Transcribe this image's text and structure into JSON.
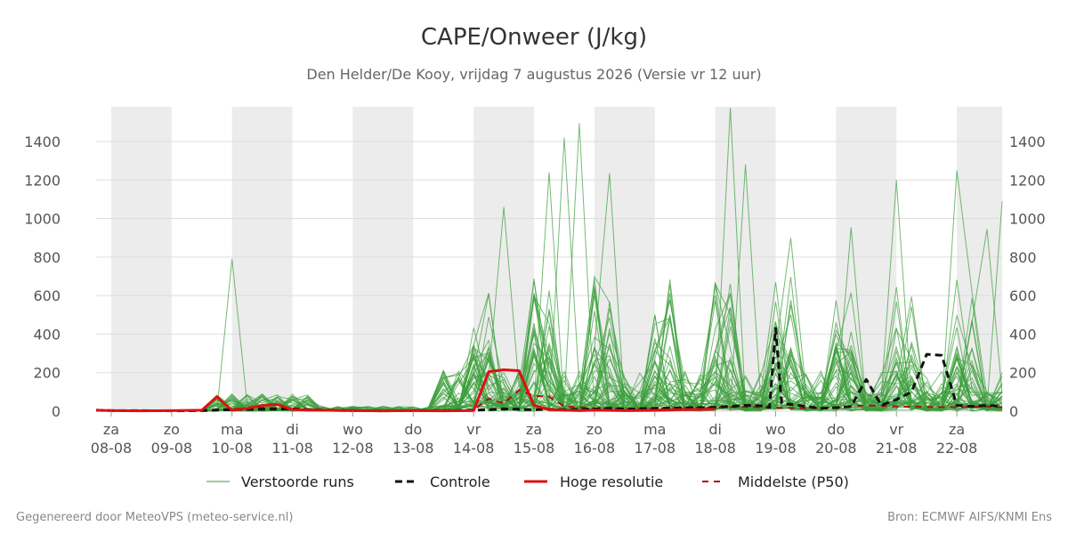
{
  "chart_data": {
    "type": "line",
    "title": "CAPE/Onweer (J/kg)",
    "subtitle": "Den Helder/De Kooy, vrijdag  7 augustus 2026 (Versie vr 12 uur)",
    "ylim": [
      0,
      1580
    ],
    "xlim": [
      -0.25,
      14.75
    ],
    "yticks": [
      0,
      200,
      400,
      600,
      800,
      1000,
      1200,
      1400
    ],
    "grid": true,
    "y_axis_both_sides": true,
    "legend_position": "bottom",
    "x_ticks": [
      {
        "day": "za",
        "date": "08-08"
      },
      {
        "day": "zo",
        "date": "09-08"
      },
      {
        "day": "ma",
        "date": "10-08"
      },
      {
        "day": "di",
        "date": "11-08"
      },
      {
        "day": "wo",
        "date": "12-08"
      },
      {
        "day": "do",
        "date": "13-08"
      },
      {
        "day": "vr",
        "date": "14-08"
      },
      {
        "day": "za",
        "date": "15-08"
      },
      {
        "day": "zo",
        "date": "16-08"
      },
      {
        "day": "ma",
        "date": "17-08"
      },
      {
        "day": "di",
        "date": "18-08"
      },
      {
        "day": "wo",
        "date": "19-08"
      },
      {
        "day": "do",
        "date": "20-08"
      },
      {
        "day": "vr",
        "date": "21-08"
      },
      {
        "day": "za",
        "date": "22-08"
      }
    ],
    "night_bands_days": [
      [
        0,
        1
      ],
      [
        2,
        3
      ],
      [
        4,
        5
      ],
      [
        6,
        7
      ],
      [
        8,
        9
      ],
      [
        10,
        11
      ],
      [
        12,
        13
      ],
      [
        14,
        14.75
      ]
    ],
    "controle": {
      "name": "Controle",
      "color": "#111111",
      "x": [
        -0.25,
        0,
        0.5,
        1,
        1.5,
        2,
        2.5,
        3,
        3.5,
        4,
        4.5,
        5,
        5.5,
        6,
        6.25,
        6.5,
        6.75,
        7,
        7.25,
        7.5,
        7.75,
        8,
        8.25,
        8.5,
        9,
        9.5,
        10,
        10.25,
        10.5,
        10.75,
        10.9,
        11,
        11.1,
        11.25,
        11.5,
        11.75,
        12,
        12.25,
        12.5,
        12.75,
        13,
        13.25,
        13.5,
        13.75,
        14,
        14.25,
        14.5,
        14.75
      ],
      "y": [
        5,
        3,
        3,
        2,
        3,
        8,
        10,
        12,
        6,
        3,
        2,
        3,
        3,
        5,
        8,
        12,
        10,
        8,
        10,
        8,
        10,
        12,
        15,
        12,
        15,
        18,
        20,
        25,
        30,
        28,
        20,
        430,
        40,
        35,
        25,
        15,
        18,
        25,
        165,
        30,
        60,
        100,
        295,
        290,
        30,
        25,
        30,
        25
      ]
    },
    "hoge_resolutie": {
      "name": "Hoge resolutie",
      "color": "#dd1111",
      "x": [
        -0.25,
        0,
        0.5,
        1,
        1.5,
        1.75,
        2,
        2.25,
        2.5,
        2.75,
        3,
        3.5,
        4,
        4.5,
        5,
        5.5,
        6,
        6.25,
        6.5,
        6.75,
        7,
        7.25,
        7.5,
        7.75,
        8,
        8.5,
        9,
        9.5,
        10
      ],
      "y": [
        5,
        3,
        2,
        3,
        5,
        75,
        5,
        15,
        30,
        35,
        8,
        5,
        3,
        2,
        3,
        2,
        3,
        205,
        215,
        210,
        30,
        8,
        5,
        3,
        5,
        3,
        4,
        8,
        10
      ]
    },
    "middelste_p50": {
      "name": "Middelste (P50)",
      "color": "#aa1111",
      "x": [
        -0.25,
        0,
        0.5,
        1,
        1.5,
        2,
        2.5,
        3,
        3.5,
        4,
        4.5,
        5,
        5.5,
        6,
        6.25,
        6.5,
        6.75,
        7,
        7.25,
        7.5,
        7.75,
        8,
        8.5,
        9,
        9.5,
        10,
        10.5,
        11,
        11.5,
        12,
        12.5,
        13,
        13.5,
        14,
        14.5,
        14.75
      ],
      "y": [
        3,
        3,
        3,
        3,
        5,
        12,
        18,
        12,
        6,
        4,
        3,
        3,
        3,
        6,
        65,
        40,
        110,
        80,
        75,
        25,
        20,
        15,
        12,
        14,
        18,
        20,
        22,
        18,
        15,
        20,
        30,
        25,
        22,
        20,
        25,
        20
      ]
    },
    "ensemble": {
      "name": "Verstoorde runs",
      "color": "#3a9e3a",
      "member_count": 50,
      "x_start": -0.25,
      "step_days": 0.25,
      "peak_members": [
        {
          "x": 2,
          "y": 790
        },
        {
          "x": 6.5,
          "y": 1060
        },
        {
          "x": 7.25,
          "y": 1240
        },
        {
          "x": 7.5,
          "y": 1420
        },
        {
          "x": 7.75,
          "y": 1495
        },
        {
          "x": 8.25,
          "y": 1235
        },
        {
          "x": 10.25,
          "y": 1575
        },
        {
          "x": 10.5,
          "y": 1280
        },
        {
          "x": 11.25,
          "y": 900
        },
        {
          "x": 12.25,
          "y": 955
        },
        {
          "x": 13,
          "y": 1200
        },
        {
          "x": 14,
          "y": 1250
        },
        {
          "x": 14.5,
          "y": 945
        },
        {
          "x": 14.75,
          "y": 1090
        }
      ]
    }
  },
  "legend": {
    "ensemble_label": "Verstoorde runs",
    "controle_label": "Controle",
    "hoge_resolutie_label": "Hoge resolutie",
    "p50_label": "Middelste (P50)"
  },
  "footer": {
    "left": "Gegenereerd door MeteoVPS (meteo-service.nl)",
    "right": "Bron: ECMWF AIFS/KNMI Ens"
  },
  "colors": {
    "night_band": "#ececec",
    "grid": "#dddddd",
    "ensemble": "#3a9e3a",
    "controle": "#111111",
    "hoge_resolutie": "#dd1111",
    "p50": "#aa1111"
  }
}
